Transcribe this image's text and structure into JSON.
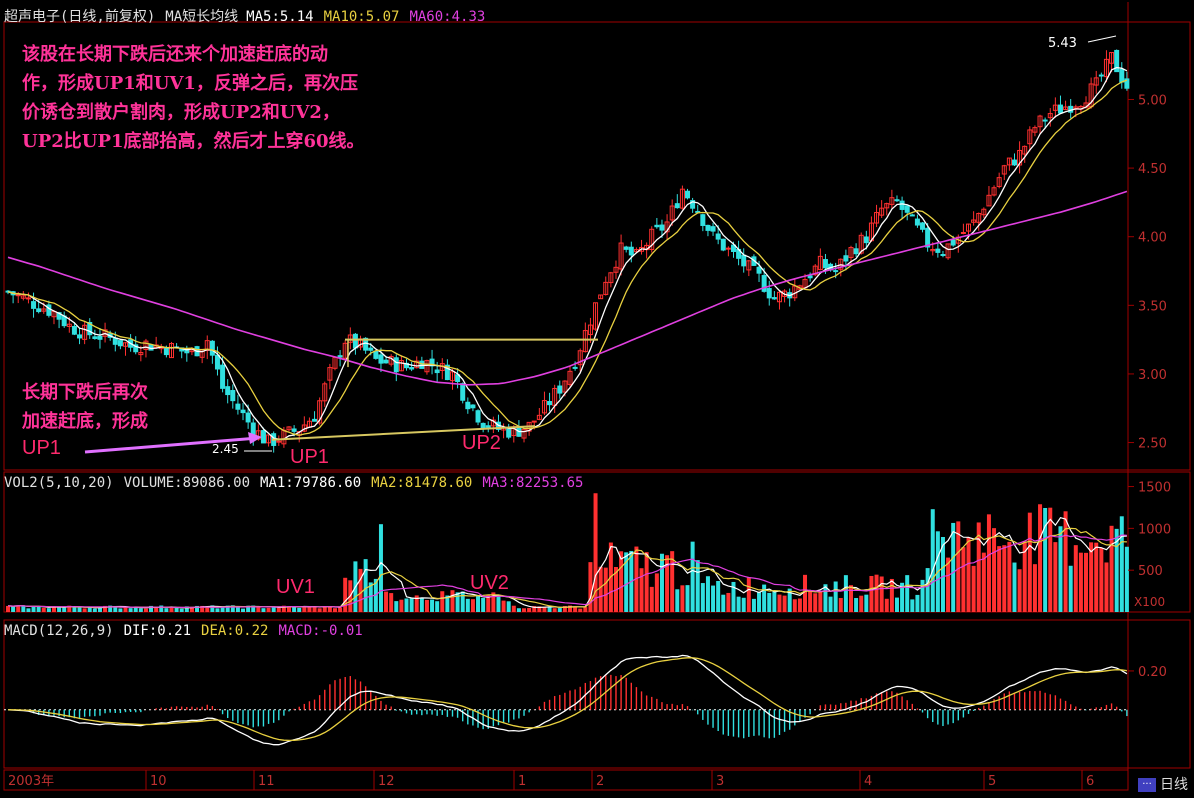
{
  "header_price": {
    "title": "超声电子(日线,前复权)",
    "indicator": "MA短长均线",
    "ma5": "MA5:5.14",
    "ma10": "MA10:5.07",
    "ma60": "MA60:4.33"
  },
  "header_volume": {
    "title": "VOL2(5,10,20)",
    "volume": "VOLUME:89086.00",
    "ma1": "MA1:79786.60",
    "ma2": "MA2:81478.60",
    "ma3": "MA3:82253.65"
  },
  "header_macd": {
    "title": "MACD(12,26,9)",
    "dif": "DIF:0.21",
    "dea": "DEA:0.22",
    "macd": "MACD:-0.01"
  },
  "annotations": {
    "main_text": "该股在长期下跌后还来个加速赶底的动\n作，形成UP1和UV1，反弹之后，再次压\n价诱仓到散户割肉，形成UP2和UV2，\nUP2比UP1底部抬高，然后才上穿60线。",
    "left_text": "长期下跌后再次\n加速赶底，形成",
    "up1_left": "UP1",
    "up1": "UP1",
    "up2": "UP2",
    "uv1": "UV1",
    "uv2": "UV2",
    "low_label": "2.45",
    "high_label": "5.43"
  },
  "colors": {
    "up": "#ff3030",
    "down": "#30e0e0",
    "ma_white": "#ffffff",
    "ma_yellow": "#e8d040",
    "ma_magenta": "#e040e0",
    "axis": "#a00000",
    "annotation": "#ff3399"
  },
  "bottom_tab": {
    "label": "日线"
  },
  "chart_data": [
    {
      "type": "candlestick",
      "title": "超声电子(日线,前复权)",
      "ylim": [
        2.3,
        5.55
      ],
      "y_ticks": [
        "5.00",
        "4.50",
        "4.00",
        "3.50",
        "3.00",
        "2.50"
      ],
      "x_tick_labels": [
        "2003年",
        "10",
        "11",
        "12",
        "1",
        "2",
        "3",
        "4",
        "5",
        "6"
      ],
      "key_points": {
        "low": 2.45,
        "high": 5.43
      },
      "close_path": [
        3.6,
        3.55,
        3.5,
        3.45,
        3.35,
        3.3,
        3.28,
        3.25,
        3.2,
        3.22,
        3.2,
        3.18,
        3.15,
        3.25,
        2.9,
        2.75,
        2.6,
        2.5,
        2.55,
        2.6,
        2.7,
        3.0,
        3.25,
        3.2,
        3.1,
        3.08,
        3.05,
        3.1,
        3.05,
        3.0,
        2.8,
        2.65,
        2.6,
        2.58,
        2.62,
        2.75,
        2.9,
        3.1,
        3.4,
        3.7,
        3.9,
        3.85,
        4.0,
        4.1,
        4.35,
        4.2,
        4.0,
        3.9,
        3.8,
        3.7,
        3.55,
        3.6,
        3.7,
        3.8,
        3.75,
        3.9,
        4.0,
        4.2,
        4.25,
        4.1,
        3.95,
        3.9,
        4.0,
        4.1,
        4.3,
        4.5,
        4.6,
        4.8,
        4.9,
        4.95,
        5.0,
        5.1,
        5.3,
        5.1
      ],
      "ma60_path": [
        3.85,
        3.78,
        3.7,
        3.62,
        3.55,
        3.48,
        3.4,
        3.32,
        3.25,
        3.18,
        3.12,
        3.05,
        2.99,
        2.94,
        2.92,
        2.93,
        2.98,
        3.05,
        3.15,
        3.25,
        3.35,
        3.45,
        3.55,
        3.63,
        3.7,
        3.76,
        3.82,
        3.88,
        3.94,
        4.0,
        4.06,
        4.12,
        4.18,
        4.25,
        4.33
      ],
      "trendline_low": [
        2.52,
        2.62
      ],
      "resistance_line": 3.25
    },
    {
      "type": "bar",
      "title": "VOL2(5,10,20)",
      "y_ticks": [
        "1500",
        "1000",
        "500"
      ],
      "y_unit": "X100",
      "ylim": [
        0,
        1650
      ]
    },
    {
      "type": "bar",
      "title": "MACD(12,26,9)",
      "y_ticks": [
        "0.20"
      ],
      "ylim": [
        -0.3,
        0.38
      ]
    }
  ]
}
